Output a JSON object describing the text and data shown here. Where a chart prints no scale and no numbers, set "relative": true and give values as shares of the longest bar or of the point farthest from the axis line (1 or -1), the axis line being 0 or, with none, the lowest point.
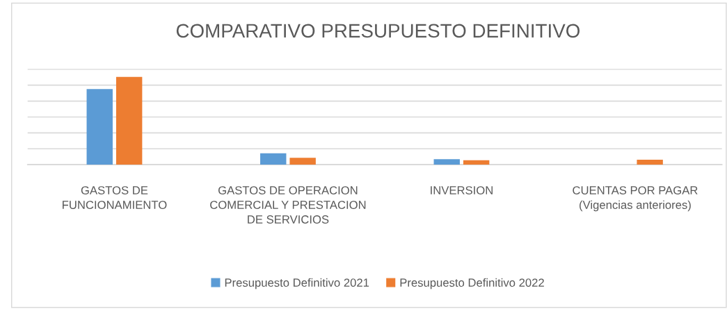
{
  "chart_data": {
    "type": "bar",
    "title": "COMPARATIVO PRESUPUESTO DEFINITIVO",
    "categories": [
      "GASTOS DE FUNCIONAMIENTO",
      "GASTOS DE OPERACION COMERCIAL Y PRESTACION DE SERVICIOS",
      "INVERSION",
      "CUENTAS POR PAGAR (Vigencias anteriores)"
    ],
    "relative": true,
    "grid": "y",
    "legend": "bottom",
    "series": [
      {
        "name": "Presupuesto Definitivo 2021",
        "color": "#5b9bd5",
        "values": [
          0.86,
          0.13,
          0.062,
          0
        ]
      },
      {
        "name": "Presupuesto Definitivo 2022",
        "color": "#ed7d31",
        "values": [
          1,
          0.079,
          0.051,
          0.056
        ]
      }
    ]
  }
}
